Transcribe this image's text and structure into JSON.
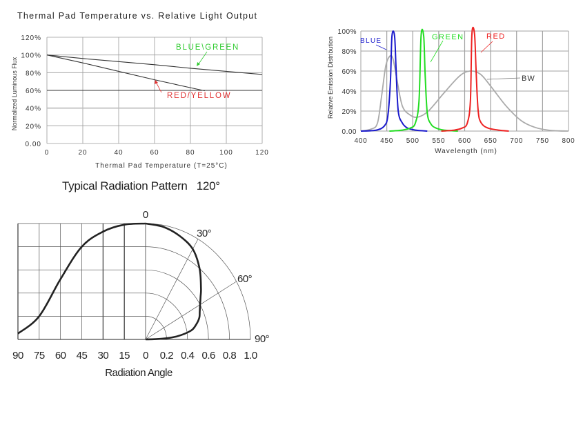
{
  "chart_data": [
    {
      "type": "line",
      "title": "Thermal Pad Temperature vs. Relative Light Output",
      "xlabel": "Thermal Pad Temperature (T=25°C)",
      "ylabel": "Normalized Luminous Flux",
      "xlim": [
        0,
        120
      ],
      "ylim": [
        0,
        120
      ],
      "x_ticks": [
        "0",
        "20",
        "40",
        "60",
        "80",
        "100",
        "120"
      ],
      "y_ticks": [
        "0.00",
        "20%",
        "40%",
        "60%",
        "80%",
        "100%",
        "120%"
      ],
      "grid": true,
      "series": [
        {
          "name": "BLUE\\GREEN",
          "color": "#33cc33",
          "line_color": "#333333",
          "x": [
            0,
            20,
            40,
            60,
            80,
            100,
            120
          ],
          "y": [
            100,
            96,
            92.5,
            89,
            85,
            81.5,
            78
          ]
        },
        {
          "name": "RED/YELLOW",
          "color": "#e03030",
          "line_color": "#333333",
          "x": [
            0,
            20,
            40,
            60,
            80,
            88
          ],
          "y": [
            100,
            91,
            81.5,
            72,
            63,
            59.5
          ]
        }
      ],
      "annotations": [
        {
          "text": "BLUE\\GREEN",
          "color": "#33cc33"
        },
        {
          "text": "RED/YELLOW",
          "color": "#e03030"
        }
      ]
    },
    {
      "type": "line",
      "title": "",
      "xlabel": "Wavelength (nm)",
      "ylabel": "Relative Emission Distribution",
      "xlim": [
        400,
        800
      ],
      "ylim": [
        0,
        100
      ],
      "x_ticks": [
        "400",
        "450",
        "500",
        "550",
        "600",
        "650",
        "700",
        "750",
        "800"
      ],
      "y_ticks": [
        "0.00",
        "20%",
        "40%",
        "60%",
        "80%",
        "100%"
      ],
      "grid": true,
      "series": [
        {
          "name": "BLUE",
          "color": "#1a1acc",
          "peak_nm": 463,
          "peak_value": 96,
          "x": [
            400,
            430,
            445,
            452,
            457,
            460,
            465,
            468,
            472,
            480,
            490,
            505,
            528
          ],
          "y": [
            0,
            1,
            5,
            15,
            50,
            95,
            95,
            60,
            20,
            8,
            3,
            1,
            0
          ]
        },
        {
          "name": "GREEN",
          "color": "#22dd22",
          "peak_nm": 519,
          "peak_value": 96,
          "x": [
            455,
            480,
            495,
            505,
            512,
            516,
            521,
            524,
            528,
            535,
            545,
            560,
            587
          ],
          "y": [
            0,
            1,
            3,
            8,
            30,
            95,
            95,
            55,
            18,
            7,
            3,
            1,
            0
          ]
        },
        {
          "name": "RED",
          "color": "#ee2222",
          "peak_nm": 617,
          "peak_value": 97,
          "x": [
            555,
            580,
            595,
            605,
            611,
            614,
            619,
            622,
            626,
            632,
            645,
            665,
            685
          ],
          "y": [
            0,
            1,
            3,
            8,
            30,
            97,
            97,
            60,
            20,
            8,
            3,
            1,
            0
          ]
        },
        {
          "name": "BW",
          "color": "#aaaaaa",
          "x": [
            400,
            420,
            432,
            440,
            448,
            456,
            462,
            470,
            480,
            495,
            510,
            530,
            560,
            590,
            610,
            630,
            650,
            680,
            710,
            740,
            770,
            800
          ],
          "y": [
            0,
            2,
            8,
            35,
            65,
            75,
            72,
            50,
            25,
            16,
            14,
            20,
            38,
            55,
            60,
            57,
            45,
            25,
            10,
            3,
            0.5,
            0
          ]
        }
      ],
      "annotations": [
        {
          "text": "BLUE",
          "color": "#1a1acc"
        },
        {
          "text": "GREEN",
          "color": "#22dd22"
        },
        {
          "text": "RED",
          "color": "#ee2222"
        },
        {
          "text": "BW",
          "color": "#333333"
        }
      ]
    },
    {
      "type": "polar",
      "title": "Typical Radiation Pattern   120°",
      "xlabel": "Radiation Angle",
      "angle_ticks_left": [
        "90",
        "75",
        "60",
        "45",
        "30",
        "15",
        "0"
      ],
      "radius_ticks_right": [
        "0.2",
        "0.4",
        "0.6",
        "0.8",
        "1.0"
      ],
      "polar_angle_labels": [
        "0",
        "30°",
        "60°",
        "90°"
      ],
      "series": [
        {
          "name": "Relative intensity",
          "angle_deg": [
            0,
            15,
            30,
            45,
            60,
            75,
            90
          ],
          "intensity": [
            1.0,
            0.99,
            0.93,
            0.8,
            0.52,
            0.2,
            0.05
          ]
        }
      ]
    }
  ],
  "charts": {
    "thermal": {
      "title": "Thermal Pad Temperature vs. Relative Light Output",
      "ylabel": "Normalized Luminous Flux",
      "xlabel": "Thermal Pad Temperature (T=25°C)",
      "label_bg": "BLUE\\GREEN",
      "label_ry": "RED/YELLOW"
    },
    "spectrum": {
      "ylabel": "Relative Emission Distribution",
      "xlabel": "Wavelength (nm)",
      "label_blue": "BLUE",
      "label_green": "GREEN",
      "label_red": "RED",
      "label_bw": "BW"
    },
    "polar": {
      "title": "Typical Radiation Pattern   120°",
      "xlabel": "Radiation Angle",
      "label_0": "0",
      "label_30": "30°",
      "label_60": "60°",
      "label_90": "90°"
    }
  }
}
